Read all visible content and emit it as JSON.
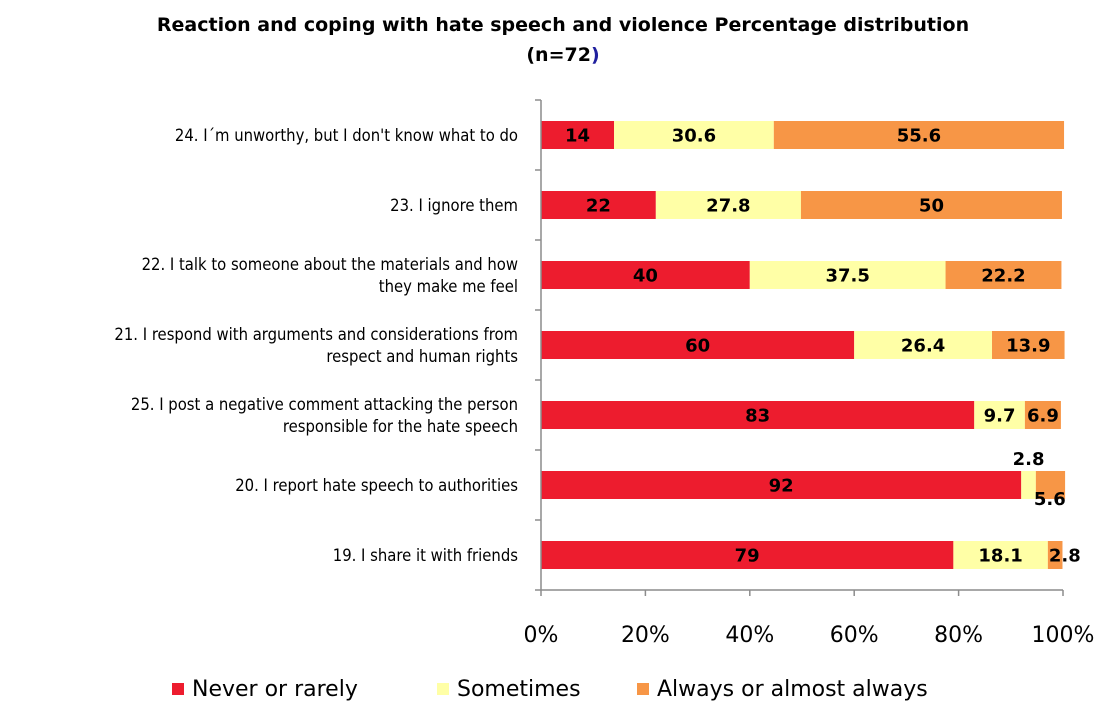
{
  "chart_data": {
    "type": "bar",
    "orientation": "horizontal",
    "stacked": true,
    "title": "Reaction and coping with hate speech and violence Percentage distribution",
    "subtitle_prefix": "(n=72",
    "subtitle_suffix": ")",
    "categories": [
      [
        "24. I´m unworthy, but I don't know what to do"
      ],
      [
        "23. I ignore them"
      ],
      [
        "22. I talk to someone about the materials and how",
        "they make me feel"
      ],
      [
        "21. I respond with arguments and considerations from",
        "respect and human rights"
      ],
      [
        "25. I post a negative comment attacking the person",
        "responsible for the hate speech"
      ],
      [
        "20. I report hate speech to authorities"
      ],
      [
        "19. I share it with friends"
      ]
    ],
    "series": [
      {
        "name": "Never or rarely",
        "color": "#ed1c2e",
        "values": [
          14,
          22,
          40,
          60,
          83,
          92,
          79
        ],
        "labels": [
          "14",
          "22",
          "40",
          "60",
          "83",
          "92",
          "79"
        ]
      },
      {
        "name": "Sometimes",
        "color": "#ffffa6",
        "values": [
          30.6,
          27.8,
          37.5,
          26.4,
          9.7,
          2.8,
          18.1
        ],
        "labels": [
          "30.6",
          "27.8",
          "37.5",
          "26.4",
          "9.7",
          "2.8",
          "18.1"
        ]
      },
      {
        "name": "Always or almost always",
        "color": "#f79646",
        "values": [
          55.6,
          50,
          22.2,
          13.9,
          6.9,
          5.6,
          2.8
        ],
        "labels": [
          "55.6",
          "50",
          "22.2",
          "13.9",
          "6.9",
          "5.6",
          "2.8"
        ]
      }
    ],
    "xticks": [
      "0%",
      "20%",
      "40%",
      "60%",
      "80%",
      "100%"
    ],
    "xlim": [
      0,
      100
    ],
    "legend_position": "bottom",
    "grid": false
  }
}
